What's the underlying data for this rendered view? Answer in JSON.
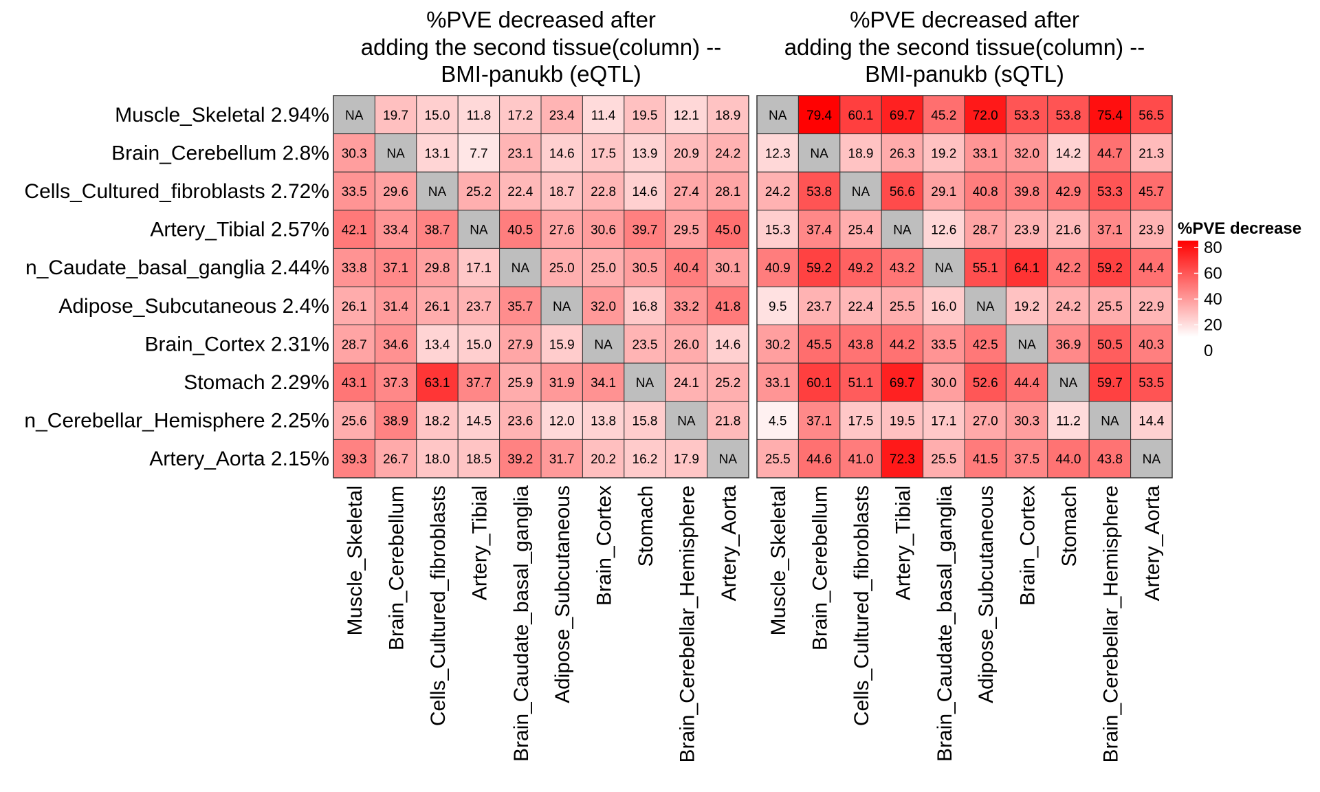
{
  "chart_data": {
    "type": "heatmap",
    "row_labels": [
      "Muscle_Skeletal 2.94%",
      "Brain_Cerebellum 2.8%",
      "Cells_Cultured_fibroblasts 2.72%",
      "Artery_Tibial 2.57%",
      "n_Caudate_basal_ganglia 2.44%",
      "Adipose_Subcutaneous 2.4%",
      "Brain_Cortex 2.31%",
      "Stomach 2.29%",
      "n_Cerebellar_Hemisphere 2.25%",
      "Artery_Aorta 2.15%"
    ],
    "column_labels": [
      "Muscle_Skeletal",
      "Brain_Cerebellum",
      "Cells_Cultured_fibroblasts",
      "Artery_Tibial",
      "Brain_Caudate_basal_ganglia",
      "Adipose_Subcutaneous",
      "Brain_Cortex",
      "Stomach",
      "Brain_Cerebellar_Hemisphere",
      "Artery_Aorta"
    ],
    "na_label": "NA",
    "panels": [
      {
        "title_lines": [
          "%PVE decreased after",
          "adding the second tissue(column) --",
          "BMI-panukb (eQTL)"
        ],
        "values": [
          [
            null,
            19.7,
            15.0,
            11.8,
            17.2,
            23.4,
            11.4,
            19.5,
            12.1,
            18.9
          ],
          [
            30.3,
            null,
            13.1,
            7.7,
            23.1,
            14.6,
            17.5,
            13.9,
            20.9,
            24.2
          ],
          [
            33.5,
            29.6,
            null,
            25.2,
            22.4,
            18.7,
            22.8,
            14.6,
            27.4,
            28.1
          ],
          [
            42.1,
            33.4,
            38.7,
            null,
            40.5,
            27.6,
            30.6,
            39.7,
            29.5,
            45.0
          ],
          [
            33.8,
            37.1,
            29.8,
            17.1,
            null,
            25.0,
            25.0,
            30.5,
            40.4,
            30.1
          ],
          [
            26.1,
            31.4,
            26.1,
            23.7,
            35.7,
            null,
            32.0,
            16.8,
            33.2,
            41.8
          ],
          [
            28.7,
            34.6,
            13.4,
            15.0,
            27.9,
            15.9,
            null,
            23.5,
            26.0,
            14.6
          ],
          [
            43.1,
            37.3,
            63.1,
            37.7,
            25.9,
            31.9,
            34.1,
            null,
            24.1,
            25.2
          ],
          [
            25.6,
            38.9,
            18.2,
            14.5,
            23.6,
            12.0,
            13.8,
            15.8,
            null,
            21.8
          ],
          [
            39.3,
            26.7,
            18.0,
            18.5,
            39.2,
            31.7,
            20.2,
            16.2,
            17.9,
            null
          ]
        ]
      },
      {
        "title_lines": [
          "%PVE decreased after",
          "adding the second tissue(column) --",
          "BMI-panukb (sQTL)"
        ],
        "values": [
          [
            null,
            79.4,
            60.1,
            69.7,
            45.2,
            72.0,
            53.3,
            53.8,
            75.4,
            56.5
          ],
          [
            12.3,
            null,
            18.9,
            26.3,
            19.2,
            33.1,
            32.0,
            14.2,
            44.7,
            21.3
          ],
          [
            24.2,
            53.8,
            null,
            56.6,
            29.1,
            40.8,
            39.8,
            42.9,
            53.3,
            45.7
          ],
          [
            15.3,
            37.4,
            25.4,
            null,
            12.6,
            28.7,
            23.9,
            21.6,
            37.1,
            23.9
          ],
          [
            40.9,
            59.2,
            49.2,
            43.2,
            null,
            55.1,
            64.1,
            42.2,
            59.2,
            44.4
          ],
          [
            9.5,
            23.7,
            22.4,
            25.5,
            16.0,
            null,
            19.2,
            24.2,
            25.5,
            22.9
          ],
          [
            30.2,
            45.5,
            43.8,
            44.2,
            33.5,
            42.5,
            null,
            36.9,
            50.5,
            40.3
          ],
          [
            33.1,
            60.1,
            51.1,
            69.7,
            30.0,
            52.6,
            44.4,
            null,
            59.7,
            53.5
          ],
          [
            4.5,
            37.1,
            17.5,
            19.5,
            17.1,
            27.0,
            30.3,
            11.2,
            null,
            14.4
          ],
          [
            25.5,
            44.6,
            41.0,
            72.3,
            25.5,
            41.5,
            37.5,
            44.0,
            43.8,
            null
          ]
        ]
      }
    ],
    "legend": {
      "title": "%PVE decrease",
      "ticks": [
        0,
        20,
        40,
        60,
        80
      ],
      "range": [
        0,
        80
      ]
    },
    "colors": {
      "low": "#ffffff",
      "high": "#ff0000",
      "na": "#bebebe",
      "border": "#333333"
    }
  }
}
